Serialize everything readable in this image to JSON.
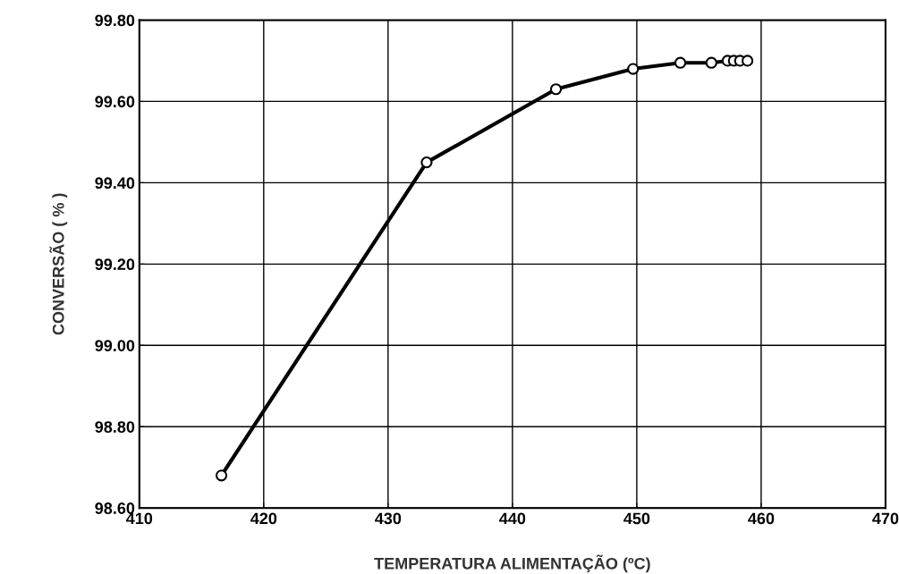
{
  "chart_data": {
    "type": "line",
    "xlabel": "TEMPERATURA ALIMENTAÇÃO (ºC)",
    "ylabel": "CONVERSÃO ( % )",
    "x": [
      416.6,
      433.1,
      443.5,
      449.7,
      453.5,
      456.0,
      457.3,
      457.8,
      458.3,
      458.9
    ],
    "series": [
      {
        "color": "#000000",
        "values": [
          98.68,
          99.45,
          99.63,
          99.68,
          99.695,
          99.695,
          99.7,
          99.7,
          99.7,
          99.7
        ]
      }
    ],
    "xlim": [
      410,
      470
    ],
    "xticks": [
      410,
      420,
      430,
      440,
      450,
      460,
      470
    ],
    "ylim": [
      98.6,
      99.8
    ],
    "yticks": [
      {
        "value": 98.6,
        "label": "98.60"
      },
      {
        "value": 98.8,
        "label": "98.80"
      },
      {
        "value": 99.0,
        "label": "99.00"
      },
      {
        "value": 99.2,
        "label": "99.20"
      },
      {
        "value": 99.4,
        "label": "99.40"
      },
      {
        "value": 99.6,
        "label": "99.60"
      },
      {
        "value": 99.8,
        "label": "99.80"
      }
    ],
    "grid": true,
    "marker": "circle",
    "line_style": "solid"
  }
}
